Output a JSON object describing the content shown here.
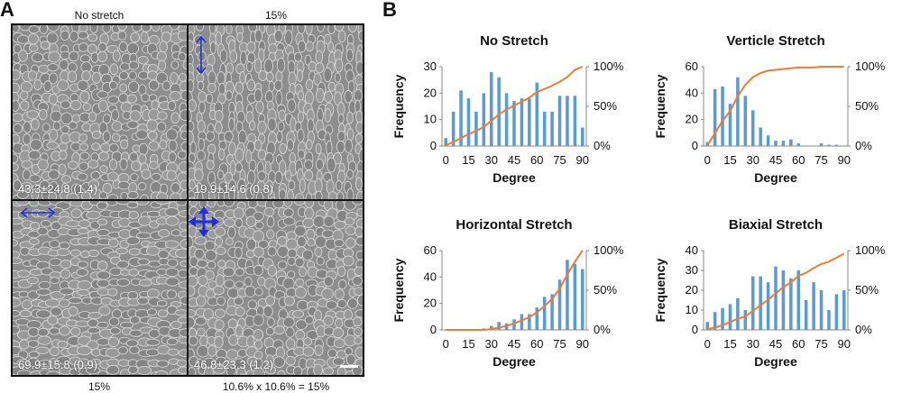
{
  "panel_a": {
    "letter": "A",
    "captions": {
      "top_left": "No stretch",
      "top_right": "15%",
      "bottom_left": "15%",
      "bottom_right": "10.6% x 10.6%  = 15%"
    },
    "stats": {
      "top_left": "43.3±24.8 (1.4)",
      "top_right": "19.9±14.6 (0.8)",
      "bottom_left": "69.9±15.8 (0.9)",
      "bottom_right": "46.8±23.3 (1.2)"
    },
    "arrow_color": "#1f2fe0",
    "arrow_icons": {
      "top_right": "vertical-arrow-icon",
      "bottom_left": "horizontal-arrow-icon",
      "bottom_right": "biaxial-arrow-icon"
    }
  },
  "panel_b": {
    "letter": "B"
  },
  "colors": {
    "bar": "#5b9bd5",
    "line": "#ed7d31",
    "axis": "#888888",
    "text": "#111111"
  },
  "chart_data": [
    {
      "type": "bar",
      "title": "No Stretch",
      "xlabel": "Degree",
      "ylabel": "Frequency",
      "x": [
        0,
        5,
        10,
        15,
        20,
        25,
        30,
        35,
        40,
        45,
        50,
        55,
        60,
        65,
        70,
        75,
        80,
        85,
        90
      ],
      "x_ticks": [
        "0",
        "15",
        "30",
        "45",
        "60",
        "75",
        "90"
      ],
      "ylim": [
        0,
        30
      ],
      "y_ticks": [
        "0",
        "10",
        "20",
        "30"
      ],
      "y2_ticks": [
        "0%",
        "50%",
        "100%"
      ],
      "series": [
        {
          "kind": "bar",
          "values": [
            3,
            13,
            21,
            18,
            13,
            20,
            28,
            26,
            20,
            17,
            18,
            18,
            24,
            13,
            13,
            19,
            19,
            19,
            7
          ]
        },
        {
          "kind": "line",
          "axis": "secondary",
          "values": [
            0.01,
            0.05,
            0.1,
            0.15,
            0.19,
            0.24,
            0.32,
            0.4,
            0.46,
            0.51,
            0.56,
            0.61,
            0.68,
            0.72,
            0.76,
            0.81,
            0.87,
            0.96,
            1.0
          ]
        }
      ]
    },
    {
      "type": "bar",
      "title": "Verticle Stretch",
      "xlabel": "Degree",
      "ylabel": "Frequency",
      "x": [
        0,
        5,
        10,
        15,
        20,
        25,
        30,
        35,
        40,
        45,
        50,
        55,
        60,
        65,
        70,
        75,
        80,
        85,
        90
      ],
      "x_ticks": [
        "0",
        "15",
        "30",
        "45",
        "60",
        "75",
        "90"
      ],
      "ylim": [
        0,
        60
      ],
      "y_ticks": [
        "0",
        "20",
        "40",
        "60"
      ],
      "y2_ticks": [
        "0%",
        "50%",
        "100%"
      ],
      "series": [
        {
          "kind": "bar",
          "values": [
            3,
            43,
            45,
            32,
            52,
            38,
            27,
            14,
            8,
            4,
            4,
            5,
            2,
            0,
            0,
            2,
            1,
            1,
            0
          ]
        },
        {
          "kind": "line",
          "axis": "secondary",
          "values": [
            0.01,
            0.16,
            0.32,
            0.44,
            0.63,
            0.77,
            0.87,
            0.92,
            0.95,
            0.96,
            0.97,
            0.98,
            0.99,
            0.99,
            0.99,
            1.0,
            1.0,
            1.0,
            1.0
          ]
        }
      ]
    },
    {
      "type": "bar",
      "title": "Horizontal Stretch",
      "xlabel": "Degree",
      "ylabel": "Frequency",
      "x": [
        0,
        5,
        10,
        15,
        20,
        25,
        30,
        35,
        40,
        45,
        50,
        55,
        60,
        65,
        70,
        75,
        80,
        85,
        90
      ],
      "x_ticks": [
        "0",
        "15",
        "30",
        "45",
        "60",
        "75",
        "90"
      ],
      "ylim": [
        0,
        60
      ],
      "y_ticks": [
        "0",
        "20",
        "40",
        "60"
      ],
      "y2_ticks": [
        "0%",
        "50%",
        "100%"
      ],
      "series": [
        {
          "kind": "bar",
          "values": [
            0,
            0,
            0,
            0,
            0,
            1,
            3,
            6,
            5,
            8,
            12,
            12,
            17,
            25,
            27,
            38,
            53,
            50,
            46
          ]
        },
        {
          "kind": "line",
          "axis": "secondary",
          "values": [
            0.0,
            0.0,
            0.0,
            0.0,
            0.0,
            0.0,
            0.01,
            0.03,
            0.05,
            0.08,
            0.12,
            0.16,
            0.22,
            0.3,
            0.39,
            0.52,
            0.7,
            0.86,
            1.0
          ]
        }
      ]
    },
    {
      "type": "bar",
      "title": "Biaxial Stretch",
      "xlabel": "Degree",
      "ylabel": "Frequency",
      "x": [
        0,
        5,
        10,
        15,
        20,
        25,
        30,
        35,
        40,
        45,
        50,
        55,
        60,
        65,
        70,
        75,
        80,
        85,
        90
      ],
      "x_ticks": [
        "0",
        "15",
        "30",
        "45",
        "60",
        "75",
        "90"
      ],
      "ylim": [
        0,
        40
      ],
      "y_ticks": [
        "0",
        "10",
        "20",
        "30",
        "40"
      ],
      "y2_ticks": [
        "0%",
        "50%",
        "100%"
      ],
      "series": [
        {
          "kind": "bar",
          "values": [
            4,
            9,
            11,
            13,
            16,
            10,
            27,
            27,
            24,
            32,
            30,
            26,
            30,
            15,
            24,
            20,
            10,
            18,
            20
          ]
        },
        {
          "kind": "line",
          "axis": "secondary",
          "values": [
            0.01,
            0.03,
            0.06,
            0.1,
            0.14,
            0.17,
            0.24,
            0.31,
            0.38,
            0.46,
            0.54,
            0.6,
            0.68,
            0.72,
            0.78,
            0.83,
            0.86,
            0.91,
            0.96
          ]
        }
      ]
    }
  ]
}
